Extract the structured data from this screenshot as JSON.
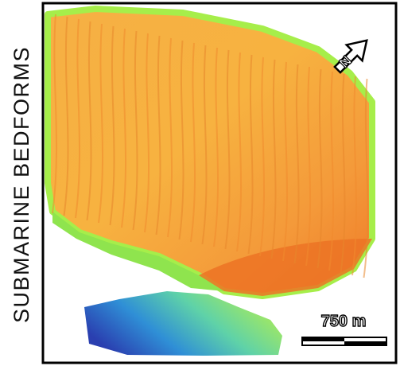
{
  "title": "SUBMARINE BEDFORMS",
  "north_arrow": {
    "label": "N"
  },
  "scale_bar": {
    "label": "750 m"
  }
}
